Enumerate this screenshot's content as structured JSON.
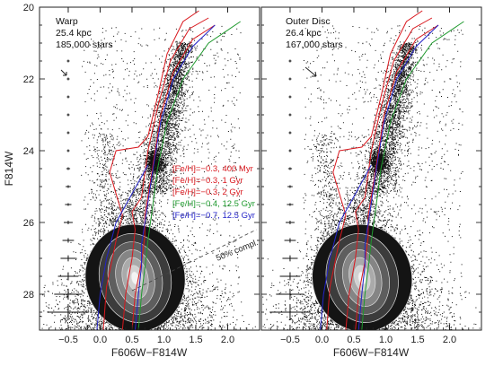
{
  "chart_data": [
    {
      "type": "scatter",
      "panel": "left",
      "annotation": [
        "Warp",
        "25.4 kpc",
        "185,000 stars"
      ],
      "xlabel": "F606W−F814W",
      "ylabel": "F814W",
      "xlim": [
        -0.95,
        2.5
      ],
      "ylim": [
        29.0,
        20.0
      ],
      "y_inverted": true,
      "xticks": [
        -0.5,
        0.0,
        0.5,
        1.0,
        1.5,
        2.0
      ],
      "xtick_labels": [
        "−0.5",
        "0.0",
        "0.5",
        "1.0",
        "1.5",
        "2.0"
      ],
      "yticks": [
        20,
        22,
        24,
        26,
        28
      ],
      "ytick_labels": [
        "20",
        "22",
        "24",
        "26",
        "28"
      ],
      "completeness_label": "50% compl.",
      "isochrones": [
        {
          "name": "[Fe/H]=−0.3, 400 Myr",
          "color": "#d9181e"
        },
        {
          "name": "[Fe/H]=−0.3, 1 Gyr",
          "color": "#d9181e"
        },
        {
          "name": "[Fe/H]=−0.3, 2 Gyr",
          "color": "#d9181e"
        },
        {
          "name": "[Fe/H]=−0.4, 12.5 Gyr",
          "color": "#1f9a2e"
        },
        {
          "name": "[Fe/H]=−0.7, 12.5 Gyr",
          "color": "#2323c8"
        }
      ],
      "error_bars": [
        {
          "mag": 21.5,
          "sig_color": 0.01
        },
        {
          "mag": 22.0,
          "sig_color": 0.01
        },
        {
          "mag": 22.5,
          "sig_color": 0.01
        },
        {
          "mag": 23.0,
          "sig_color": 0.01
        },
        {
          "mag": 23.5,
          "sig_color": 0.02
        },
        {
          "mag": 24.0,
          "sig_color": 0.02
        },
        {
          "mag": 24.5,
          "sig_color": 0.03
        },
        {
          "mag": 25.0,
          "sig_color": 0.04
        },
        {
          "mag": 25.5,
          "sig_color": 0.05
        },
        {
          "mag": 26.0,
          "sig_color": 0.07
        },
        {
          "mag": 26.5,
          "sig_color": 0.09
        },
        {
          "mag": 27.0,
          "sig_color": 0.12
        },
        {
          "mag": 27.5,
          "sig_color": 0.16
        },
        {
          "mag": 28.0,
          "sig_color": 0.22
        },
        {
          "mag": 28.5,
          "sig_color": 0.32
        }
      ]
    },
    {
      "type": "scatter",
      "panel": "right",
      "annotation": [
        "Outer Disc",
        "26.4 kpc",
        "167,000 stars"
      ],
      "xlabel": "F606W−F814W",
      "xlim": [
        -0.95,
        2.5
      ],
      "ylim": [
        29.0,
        20.0
      ],
      "y_inverted": true,
      "xticks": [
        -0.5,
        0.0,
        0.5,
        1.0,
        1.5,
        2.0
      ],
      "xtick_labels": [
        "−0.5",
        "0.0",
        "0.5",
        "1.0",
        "1.5",
        "2.0"
      ],
      "error_bars": [
        {
          "mag": 21.5,
          "sig_color": 0.01
        },
        {
          "mag": 22.0,
          "sig_color": 0.01
        },
        {
          "mag": 22.5,
          "sig_color": 0.01
        },
        {
          "mag": 23.0,
          "sig_color": 0.01
        },
        {
          "mag": 23.5,
          "sig_color": 0.02
        },
        {
          "mag": 24.0,
          "sig_color": 0.02
        },
        {
          "mag": 24.5,
          "sig_color": 0.03
        },
        {
          "mag": 25.0,
          "sig_color": 0.04
        },
        {
          "mag": 25.5,
          "sig_color": 0.05
        },
        {
          "mag": 26.0,
          "sig_color": 0.07
        },
        {
          "mag": 26.5,
          "sig_color": 0.09
        },
        {
          "mag": 27.0,
          "sig_color": 0.12
        },
        {
          "mag": 27.5,
          "sig_color": 0.16
        },
        {
          "mag": 28.0,
          "sig_color": 0.22
        },
        {
          "mag": 28.5,
          "sig_color": 0.32
        }
      ]
    }
  ]
}
